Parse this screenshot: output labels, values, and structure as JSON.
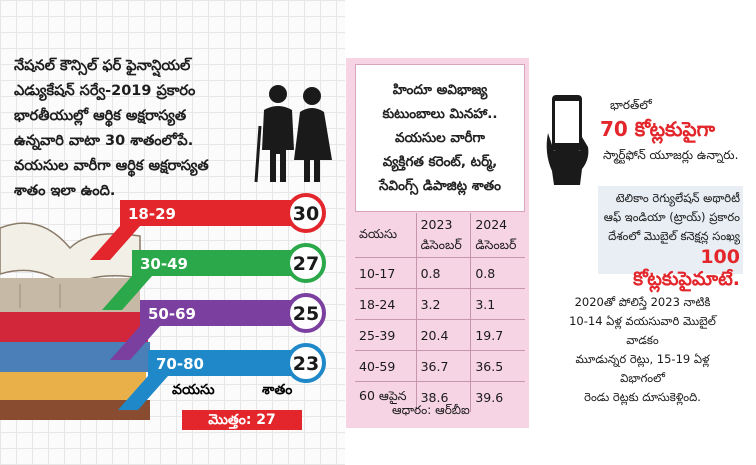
{
  "intro": {
    "line1": "నేషనల్ కౌన్సిల్ ఫర్ ఫైనాన్షియల్",
    "line2": "ఎడ్యుకేషన్ సర్వే-2019 ప్రకారం",
    "line3": "భారతీయుల్లో ఆర్థిక అక్షరాస్యత",
    "line4": "ఉన్నవారి వాటా 30 శాతంలోపే.",
    "line5": "వయసుల వారీగా ఆర్థిక అక్షరాస్యత",
    "line6": "శాతం ఇలా ఉంది."
  },
  "chart_data": {
    "type": "bar",
    "categories": [
      "18-29",
      "30-49",
      "50-69",
      "70-80"
    ],
    "values": [
      30,
      27,
      25,
      23
    ],
    "xlabel": "వయసు",
    "ylabel": "శాతం",
    "total_label": "మొత్తం: 27",
    "colors": [
      "#e3262b",
      "#2aa84a",
      "#7b3fa0",
      "#1e88c9"
    ]
  },
  "deposits_table": {
    "title_lines": [
      "హిందూ అవిభాజ్య",
      "కుటుంబాలు మినహా..",
      "వయసుల వారీగా",
      "వ్యక్తిగత కరెంట్, టర్మ్,",
      "సేవింగ్స్ డిపాజిట్ల శాతం"
    ],
    "col_age": "వయసు",
    "col_2023_year": "2023",
    "col_2023_month": "డిసెంబర్",
    "col_2024_year": "2024",
    "col_2024_month": "డిసెంబర్",
    "rows": [
      {
        "age": "10-17",
        "v2023": "0.8",
        "v2024": "0.8"
      },
      {
        "age": "18-24",
        "v2023": "3.2",
        "v2024": "3.1"
      },
      {
        "age": "25-39",
        "v2023": "20.4",
        "v2024": "19.7"
      },
      {
        "age": "40-59",
        "v2023": "36.7",
        "v2024": "36.5"
      },
      {
        "age": "60 ఆపైన",
        "v2023": "38.6",
        "v2024": "39.6"
      }
    ],
    "source": "ఆధారం: ఆర్‌బీఐ"
  },
  "smartphone": {
    "line1": "భారత్‌లో",
    "big": "70 కోట్లకుపైగా",
    "line3": "స్మార్ట్‌ఫోన్ యూజర్లు ఉన్నారు."
  },
  "trai": {
    "line1": "టెలికాం రెగ్యులేషన్ అథారిటీ",
    "line2": "ఆఫ్ ఇండియా (ట్రాయ్) ప్రకారం",
    "line3": "దేశంలో మొబైల్ కనెక్షన్ల సంఖ్య",
    "big": "100 కోట్లకుపైమాటే."
  },
  "growth": {
    "line1": "2020తో పోలిస్తే 2023 నాటికి",
    "line2": "10-14 ఏళ్ల వయసువారి మొబైల్ వాడకం",
    "line3": "మూడున్నర రెట్లు, 15-19 ఏళ్ల విభాగంలో",
    "line4": "రెండు రెట్లకు దూసుకెళ్లింది."
  }
}
